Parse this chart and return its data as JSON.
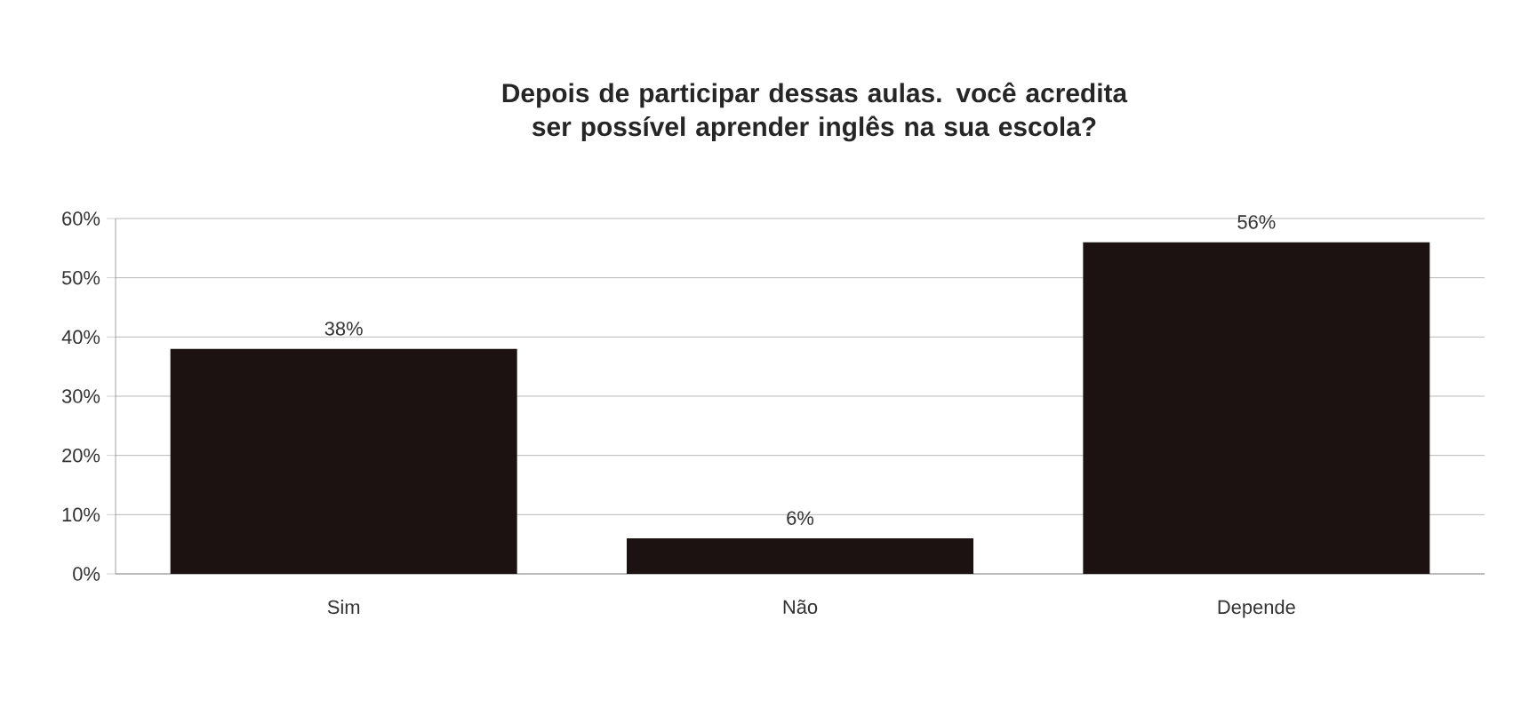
{
  "chart_data": {
    "type": "bar",
    "title": "Depois de participar dessas aulas. você acredita ser possível aprender inglês na sua escola?",
    "categories": [
      "Sim",
      "Não",
      "Depende"
    ],
    "values": [
      38,
      6,
      56
    ],
    "value_labels": [
      "38%",
      "6%",
      "56%"
    ],
    "color": "#1c1212",
    "ylim": [
      0,
      60
    ],
    "yticks": [
      {
        "value": 0,
        "label": "0%"
      },
      {
        "value": 10,
        "label": "10%"
      },
      {
        "value": 20,
        "label": "20%"
      },
      {
        "value": 30,
        "label": "30%"
      },
      {
        "value": 40,
        "label": "40%"
      },
      {
        "value": 50,
        "label": "50%"
      },
      {
        "value": 60,
        "label": "60%"
      }
    ],
    "grid": "y"
  }
}
